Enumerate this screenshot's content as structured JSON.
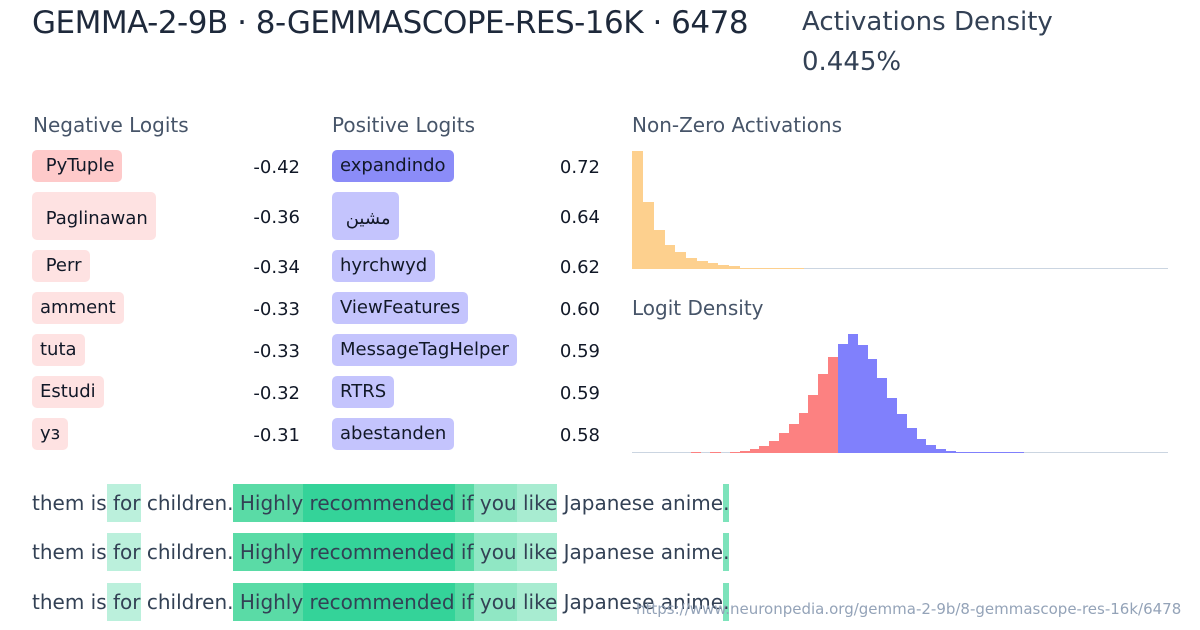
{
  "header": {
    "title": "GEMMA-2-9B · 8-GEMMASCOPE-RES-16K · 6478",
    "density_label": "Activations Density",
    "density_value": "0.445%"
  },
  "negative_logits": {
    "label": "Negative Logits",
    "items": [
      {
        "token": " PyTuple",
        "value": "-0.42",
        "color": "#fecaca"
      },
      {
        "token": " Paglinawan",
        "value": "-0.36",
        "color": "#fee2e2"
      },
      {
        "token": " Perr",
        "value": "-0.34",
        "color": "#fee2e2"
      },
      {
        "token": "amment",
        "value": "-0.33",
        "color": "#fee2e2"
      },
      {
        "token": "tuta",
        "value": "-0.33",
        "color": "#fee2e2"
      },
      {
        "token": "Estudi",
        "value": "-0.32",
        "color": "#fee2e2"
      },
      {
        "token": "уз",
        "value": "-0.31",
        "color": "#fee2e2"
      }
    ]
  },
  "positive_logits": {
    "label": "Positive Logits",
    "items": [
      {
        "token": "expandindo",
        "value": "0.72",
        "color": "#8b8cf8"
      },
      {
        "token": " مشين",
        "value": "0.64",
        "color": "#c4c4fd"
      },
      {
        "token": "hyrchwyd",
        "value": "0.62",
        "color": "#c4c4fd"
      },
      {
        "token": "ViewFeatures",
        "value": "0.60",
        "color": "#c4c4fd"
      },
      {
        "token": "MessageTagHelper",
        "value": "0.59",
        "color": "#c4c4fd"
      },
      {
        "token": "RTRS",
        "value": "0.59",
        "color": "#c4c4fd"
      },
      {
        "token": "abestanden",
        "value": "0.58",
        "color": "#c4c4fd"
      }
    ]
  },
  "chart_data": [
    {
      "type": "bar",
      "title": "Non-Zero Activations",
      "color": "#fdd08e",
      "values": [
        100,
        57,
        33,
        20,
        14,
        9,
        7,
        5.5,
        3,
        2.2,
        1.2,
        0.8,
        0.6,
        0.6,
        0.4,
        0.2,
        0,
        0,
        0,
        0,
        0,
        0,
        0,
        0,
        0,
        0,
        0,
        0,
        0,
        0,
        0,
        0,
        0,
        0,
        0,
        0,
        0,
        0,
        0,
        0,
        0,
        0,
        0,
        0,
        0,
        0,
        0,
        0,
        0,
        0
      ],
      "xlabel": "",
      "ylabel": ""
    },
    {
      "type": "bar",
      "title": "Logit Density",
      "negative_color": "#fc8181",
      "positive_color": "#8080fc",
      "negative_values": [
        0,
        0,
        0,
        0,
        0,
        0,
        0.5,
        0,
        0.5,
        0,
        1,
        2,
        3,
        6,
        10,
        17,
        24,
        34,
        49,
        66,
        81
      ],
      "positive_values": [
        92,
        100,
        91,
        79,
        63,
        46,
        33,
        21,
        12,
        7,
        3.5,
        2,
        1,
        0.5,
        0.3,
        0.3,
        0.3,
        0.3,
        0.3,
        0,
        0,
        0,
        0,
        0,
        0,
        0,
        0,
        0,
        0,
        0
      ],
      "xlabel": "",
      "ylabel": ""
    }
  ],
  "examples": [
    {
      "tokens": [
        {
          "text": "them",
          "bg": ""
        },
        {
          "text": " is",
          "bg": ""
        },
        {
          "text": " for",
          "bg": "#bbf0dc"
        },
        {
          "text": " children",
          "bg": ""
        },
        {
          "text": ".",
          "bg": ""
        },
        {
          "text": " Highly",
          "bg": "#5adba6"
        },
        {
          "text": " recommended",
          "bg": "#34d399"
        },
        {
          "text": " if",
          "bg": "#5adba6"
        },
        {
          "text": " you",
          "bg": "#90e7c4"
        },
        {
          "text": " like",
          "bg": "#a8ecd1"
        },
        {
          "text": " Japanese",
          "bg": ""
        },
        {
          "text": " anime",
          "bg": ""
        },
        {
          "text": ".",
          "bg": "#7de3bb"
        }
      ]
    },
    {
      "tokens": [
        {
          "text": "them",
          "bg": ""
        },
        {
          "text": " is",
          "bg": ""
        },
        {
          "text": " for",
          "bg": "#bbf0dc"
        },
        {
          "text": " children",
          "bg": ""
        },
        {
          "text": ".",
          "bg": ""
        },
        {
          "text": " Highly",
          "bg": "#5adba6"
        },
        {
          "text": " recommended",
          "bg": "#34d399"
        },
        {
          "text": " if",
          "bg": "#5adba6"
        },
        {
          "text": " you",
          "bg": "#90e7c4"
        },
        {
          "text": " like",
          "bg": "#a8ecd1"
        },
        {
          "text": " Japanese",
          "bg": ""
        },
        {
          "text": " anime",
          "bg": ""
        },
        {
          "text": ".",
          "bg": "#7de3bb"
        }
      ]
    },
    {
      "tokens": [
        {
          "text": "them",
          "bg": ""
        },
        {
          "text": " is",
          "bg": ""
        },
        {
          "text": " for",
          "bg": "#bbf0dc"
        },
        {
          "text": " children",
          "bg": ""
        },
        {
          "text": ".",
          "bg": ""
        },
        {
          "text": " Highly",
          "bg": "#5adba6"
        },
        {
          "text": " recommended",
          "bg": "#34d399"
        },
        {
          "text": " if",
          "bg": "#5adba6"
        },
        {
          "text": " you",
          "bg": "#90e7c4"
        },
        {
          "text": " like",
          "bg": "#a8ecd1"
        },
        {
          "text": " Japanese",
          "bg": ""
        },
        {
          "text": " anime",
          "bg": ""
        },
        {
          "text": ".",
          "bg": "#7de3bb"
        }
      ]
    }
  ],
  "footer": {
    "url": "https://www.neuronpedia.org/gemma-2-9b/8-gemmascope-res-16k/6478"
  }
}
